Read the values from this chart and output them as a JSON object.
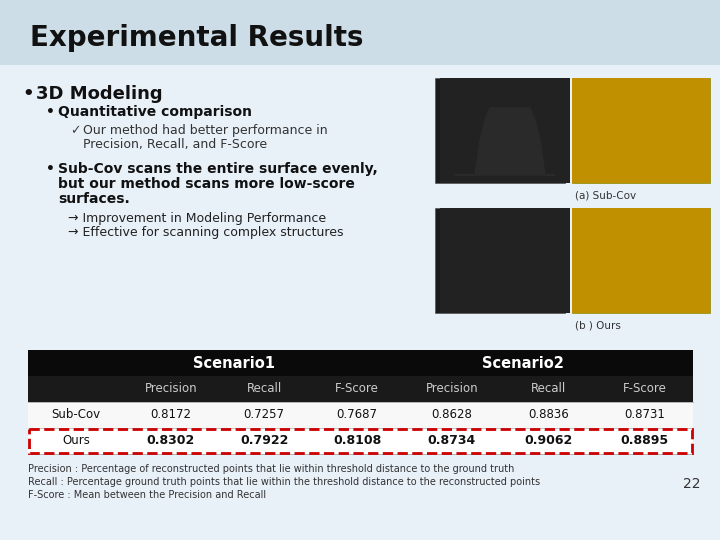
{
  "title": "Experimental Results",
  "bg_color": "#e8f0f8",
  "title_bg_color": "#ccdde8",
  "bullet1": "3D Modeling",
  "bullet2": "Quantitative comparison",
  "check_text_line1": "Our method had better performance in",
  "check_text_line2": "Precision, Recall, and F-Score",
  "bullet3_line1": "Sub-Cov scans the entire surface evenly,",
  "bullet3_line2": "but our method scans more low-score",
  "bullet3_line3": "surfaces.",
  "arrow1": "→ Improvement in Modeling Performance",
  "arrow2": "→ Effective for scanning complex structures",
  "caption_a": "(a) Sub-Cov",
  "caption_b": "(b ) Ours",
  "table_header_bg": "#0a0a0a",
  "table_header_color": "#ffffff",
  "table_subheader_bg": "#1a1a1a",
  "table_border_color": "#cc0000",
  "scenario1": "Scenario1",
  "scenario2": "Scenario2",
  "col_headers": [
    "Precision",
    "Recall",
    "F-Score",
    "Precision",
    "Recall",
    "F-Score"
  ],
  "row_labels": [
    "Sub-Cov",
    "Ours"
  ],
  "subcov_values": [
    "0.8172",
    "0.7257",
    "0.7687",
    "0.8628",
    "0.8836",
    "0.8731"
  ],
  "ours_values": [
    "0.8302",
    "0.7922",
    "0.8108",
    "0.8734",
    "0.9062",
    "0.8895"
  ],
  "footnote1": "Precision : Percentage of reconstructed points that lie within threshold distance to the ground truth",
  "footnote2": "Recall : Percentage ground truth points that lie within the threshold distance to the reconstructed points",
  "footnote3": "F-Score : Mean between the Precision and Recall",
  "page_num": "22",
  "img_color_dark": "#2a2a2a",
  "img_color_yellow": "#d4a800"
}
